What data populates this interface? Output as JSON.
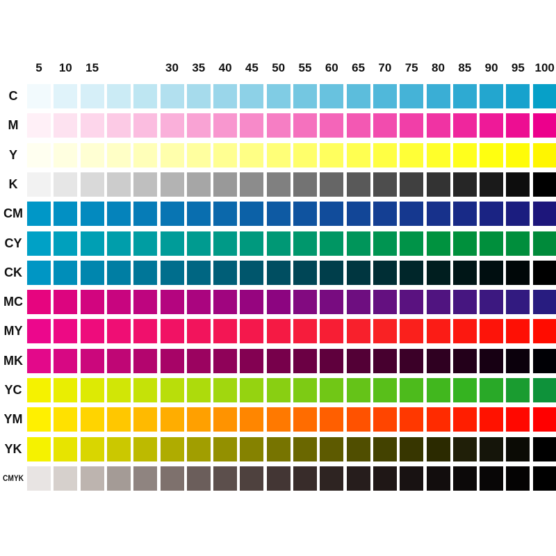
{
  "chart_data": {
    "type": "heatmap",
    "columns": [
      "5",
      "10",
      "15",
      "",
      "",
      "30",
      "35",
      "40",
      "45",
      "50",
      "55",
      "60",
      "65",
      "70",
      "75",
      "80",
      "85",
      "90",
      "95",
      "100"
    ],
    "rows": [
      {
        "label": "C",
        "colors": [
          "#f2fafd",
          "#e0f3fa",
          "#d6eff8",
          "#cbebf5",
          "#bee6f2",
          "#b2e0ef",
          "#a6dbec",
          "#9ad6ea",
          "#8dd1e7",
          "#80cce4",
          "#74c7e1",
          "#68c2df",
          "#5cbddc",
          "#50b8da",
          "#45b3d7",
          "#3aaed5",
          "#2eaad2",
          "#23a6cf",
          "#17a2cd",
          "#07a0c8"
        ]
      },
      {
        "label": "M",
        "colors": [
          "#fff0f7",
          "#fde2f0",
          "#fdd6eb",
          "#fccae5",
          "#fbbde0",
          "#fab0da",
          "#f9a3d4",
          "#f897cf",
          "#f78ac9",
          "#f67ec4",
          "#f571be",
          "#f465b9",
          "#f358b3",
          "#f24cae",
          "#f13fa8",
          "#f033a3",
          "#ef269d",
          "#ee1a98",
          "#ed0e92",
          "#ec008c"
        ]
      },
      {
        "label": "Y",
        "colors": [
          "#fffff0",
          "#ffffe0",
          "#ffffd3",
          "#ffffc6",
          "#ffffb9",
          "#ffffac",
          "#ffff9f",
          "#ffff92",
          "#ffff85",
          "#ffff78",
          "#ffff6b",
          "#ffff5e",
          "#ffff51",
          "#ffff44",
          "#ffff37",
          "#ffff2a",
          "#ffff1d",
          "#ffff10",
          "#fffc08",
          "#fff600"
        ]
      },
      {
        "label": "K",
        "colors": [
          "#f2f2f2",
          "#e6e6e6",
          "#d9d9d9",
          "#cccccc",
          "#bfbfbf",
          "#b3b3b3",
          "#a6a6a6",
          "#999999",
          "#8c8c8c",
          "#808080",
          "#737373",
          "#666666",
          "#595959",
          "#4d4d4d",
          "#404040",
          "#333333",
          "#262626",
          "#1a1a1a",
          "#0d0d0d",
          "#000000"
        ]
      },
      {
        "label": "CM",
        "colors": [
          "#0097c7",
          "#0290c3",
          "#038abf",
          "#0583bb",
          "#067cb7",
          "#0875b3",
          "#096eaf",
          "#0b68ab",
          "#0c61a7",
          "#0e5aa3",
          "#0f539f",
          "#114c9b",
          "#124697",
          "#143f93",
          "#15388f",
          "#17318b",
          "#182a87",
          "#1a2383",
          "#1b1d7f",
          "#1d167b"
        ]
      },
      {
        "label": "CY",
        "colors": [
          "#00a1c6",
          "#00a0bd",
          "#009fb4",
          "#009eab",
          "#009da2",
          "#009c99",
          "#009b90",
          "#009a87",
          "#00997e",
          "#009875",
          "#00976c",
          "#009663",
          "#00955a",
          "#009451",
          "#009348",
          "#00923f",
          "#00903c",
          "#008f3c",
          "#008e3c",
          "#008a3a"
        ]
      },
      {
        "label": "CK",
        "colors": [
          "#0096c4",
          "#008eb9",
          "#0086ae",
          "#007ea3",
          "#007698",
          "#006e8d",
          "#006682",
          "#005e77",
          "#00566c",
          "#004e61",
          "#004656",
          "#003e4b",
          "#003640",
          "#002e35",
          "#00262a",
          "#001e1f",
          "#001617",
          "#000e10",
          "#000708",
          "#000000"
        ]
      },
      {
        "label": "MC",
        "colors": [
          "#e6057f",
          "#dc057f",
          "#d2057f",
          "#c8057f",
          "#be057f",
          "#b4057f",
          "#aa057f",
          "#a0057f",
          "#96057f",
          "#8c0580",
          "#820a80",
          "#780c80",
          "#6e0e80",
          "#641080",
          "#5a1280",
          "#501480",
          "#461680",
          "#3c1880",
          "#321a80",
          "#281c80"
        ]
      },
      {
        "label": "MY",
        "colors": [
          "#ec078c",
          "#ed0a84",
          "#ee0c7c",
          "#ef0e74",
          "#f0106c",
          "#f11264",
          "#f2145c",
          "#f31654",
          "#f4184c",
          "#f51a44",
          "#f61c3c",
          "#f71e34",
          "#f8202c",
          "#f92224",
          "#fa201c",
          "#fb1c16",
          "#fc1810",
          "#fd140a",
          "#fe1005",
          "#ff0c00"
        ]
      },
      {
        "label": "MK",
        "colors": [
          "#e3098a",
          "#d70883",
          "#cb077c",
          "#bf0675",
          "#b3056e",
          "#a70467",
          "#9b0360",
          "#8f0259",
          "#830152",
          "#77004b",
          "#6b0044",
          "#5f003d",
          "#530036",
          "#47002f",
          "#3b0028",
          "#2f0021",
          "#23001a",
          "#170013",
          "#0b000c",
          "#000005"
        ]
      },
      {
        "label": "YC",
        "colors": [
          "#f5f200",
          "#e9ee02",
          "#ddea04",
          "#d1e606",
          "#c5e208",
          "#b9de0a",
          "#addb0c",
          "#a1d70e",
          "#95d310",
          "#89cf12",
          "#7dcb14",
          "#71c716",
          "#65c318",
          "#59bf1a",
          "#4dbb1c",
          "#41b71e",
          "#35b320",
          "#29a928",
          "#1a9c30",
          "#0e923a"
        ]
      },
      {
        "label": "YM",
        "colors": [
          "#fff000",
          "#ffe100",
          "#ffd400",
          "#ffc700",
          "#ffba00",
          "#ffad00",
          "#ffa000",
          "#ff9300",
          "#ff8600",
          "#ff7900",
          "#ff6c00",
          "#ff5f00",
          "#ff5200",
          "#ff4500",
          "#ff3800",
          "#ff2b00",
          "#ff1e00",
          "#ff1200",
          "#ff0800",
          "#ff0000"
        ]
      },
      {
        "label": "YK",
        "colors": [
          "#f5f200",
          "#e7e400",
          "#d9d600",
          "#cbc800",
          "#bdba00",
          "#afac00",
          "#a19e00",
          "#939000",
          "#858200",
          "#777400",
          "#6a6700",
          "#5d5a00",
          "#504e00",
          "#434200",
          "#373600",
          "#2b2a00",
          "#201f08",
          "#15150a",
          "#0b0b05",
          "#000000"
        ]
      },
      {
        "label": "CMYK",
        "colors": [
          "#e8e4e3",
          "#d6d0cc",
          "#bdb4af",
          "#a49b96",
          "#8f8480",
          "#7e716d",
          "#6b5e5b",
          "#5c4f4c",
          "#4e413e",
          "#433634",
          "#382c2a",
          "#2e2422",
          "#261d1c",
          "#1f1716",
          "#181212",
          "#120d0d",
          "#0c0909",
          "#080606",
          "#040303",
          "#000000"
        ]
      }
    ]
  }
}
